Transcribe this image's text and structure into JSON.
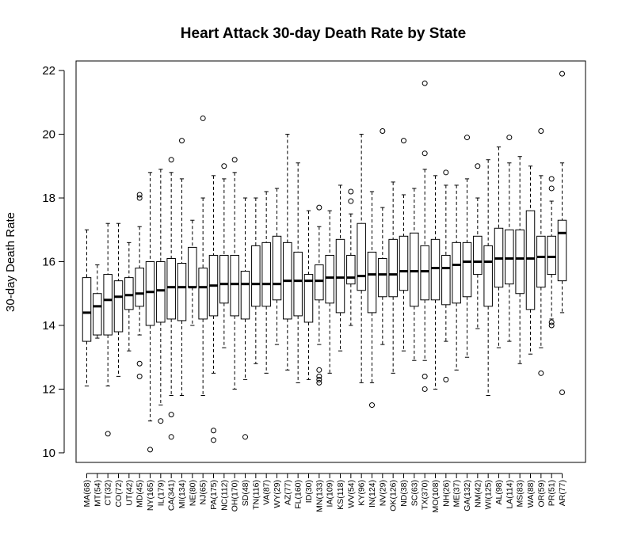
{
  "chart_data": {
    "type": "boxplot",
    "title": "Heart Attack 30-day Death Rate by State",
    "xlabel": "",
    "ylabel": "30-day Death Rate",
    "ylim": [
      9.7,
      22.3
    ],
    "yticks": [
      10,
      12,
      14,
      16,
      18,
      20,
      22
    ],
    "grid": false,
    "categories": [
      "MA(68)",
      "MT(54)",
      "CT(32)",
      "CO(72)",
      "UT(42)",
      "MD(45)",
      "NY(165)",
      "IL(179)",
      "CA(341)",
      "MI(134)",
      "NE(80)",
      "NJ(65)",
      "PA(175)",
      "NC(112)",
      "OH(170)",
      "SD(48)",
      "TN(116)",
      "VA(87)",
      "WY(29)",
      "AZ(77)",
      "FL(160)",
      "ID(30)",
      "MN(133)",
      "IA(109)",
      "KS(118)",
      "WV(54)",
      "KY(96)",
      "IN(124)",
      "NV(29)",
      "OK(126)",
      "ND(38)",
      "SC(63)",
      "TX(370)",
      "MO(108)",
      "NH(26)",
      "ME(37)",
      "GA(132)",
      "NM(42)",
      "WI(125)",
      "AL(98)",
      "LA(114)",
      "MS(83)",
      "WA(88)",
      "OR(59)",
      "PR(51)",
      "AR(77)"
    ],
    "boxes": [
      {
        "min": 12.1,
        "q1": 13.5,
        "median": 14.4,
        "q3": 15.5,
        "max": 17.0,
        "outliers": []
      },
      {
        "min": 13.6,
        "q1": 13.7,
        "median": 14.6,
        "q3": 15.0,
        "max": 15.9,
        "outliers": []
      },
      {
        "min": 12.1,
        "q1": 13.7,
        "median": 14.8,
        "q3": 15.6,
        "max": 17.2,
        "outliers": [
          10.6
        ]
      },
      {
        "min": 12.4,
        "q1": 13.8,
        "median": 14.9,
        "q3": 15.4,
        "max": 17.2,
        "outliers": []
      },
      {
        "min": 13.2,
        "q1": 14.5,
        "median": 14.95,
        "q3": 15.5,
        "max": 16.6,
        "outliers": []
      },
      {
        "min": 13.7,
        "q1": 14.6,
        "median": 15.0,
        "q3": 15.8,
        "max": 17.1,
        "outliers": [
          18.0,
          18.1,
          12.4,
          12.8
        ]
      },
      {
        "min": 11.0,
        "q1": 14.0,
        "median": 15.05,
        "q3": 16.0,
        "max": 18.8,
        "outliers": [
          10.1
        ]
      },
      {
        "min": 11.5,
        "q1": 14.1,
        "median": 15.1,
        "q3": 16.0,
        "max": 18.9,
        "outliers": [
          11.0
        ]
      },
      {
        "min": 11.8,
        "q1": 14.2,
        "median": 15.2,
        "q3": 16.1,
        "max": 18.8,
        "outliers": [
          19.2,
          11.2,
          10.5
        ]
      },
      {
        "min": 11.8,
        "q1": 14.15,
        "median": 15.2,
        "q3": 15.95,
        "max": 18.6,
        "outliers": [
          19.8
        ]
      },
      {
        "min": 14.0,
        "q1": 15.2,
        "median": 15.2,
        "q3": 16.45,
        "max": 17.3,
        "outliers": []
      },
      {
        "min": 11.8,
        "q1": 14.2,
        "median": 15.2,
        "q3": 15.8,
        "max": 18.0,
        "outliers": [
          20.5
        ]
      },
      {
        "min": 12.5,
        "q1": 14.3,
        "median": 15.25,
        "q3": 16.2,
        "max": 18.7,
        "outliers": [
          10.7,
          10.4
        ]
      },
      {
        "min": 13.3,
        "q1": 14.7,
        "median": 15.3,
        "q3": 16.2,
        "max": 18.6,
        "outliers": [
          19.0
        ]
      },
      {
        "min": 12.0,
        "q1": 14.3,
        "median": 15.3,
        "q3": 16.2,
        "max": 18.8,
        "outliers": [
          19.2
        ]
      },
      {
        "min": 12.3,
        "q1": 14.2,
        "median": 15.3,
        "q3": 15.7,
        "max": 18.0,
        "outliers": [
          10.5
        ]
      },
      {
        "min": 12.8,
        "q1": 14.6,
        "median": 15.3,
        "q3": 16.5,
        "max": 18.0,
        "outliers": []
      },
      {
        "min": 12.5,
        "q1": 14.6,
        "median": 15.3,
        "q3": 16.6,
        "max": 18.2,
        "outliers": []
      },
      {
        "min": 13.4,
        "q1": 14.8,
        "median": 15.3,
        "q3": 16.8,
        "max": 18.3,
        "outliers": []
      },
      {
        "min": 12.6,
        "q1": 14.2,
        "median": 15.4,
        "q3": 16.6,
        "max": 20.0,
        "outliers": []
      },
      {
        "min": 12.2,
        "q1": 14.3,
        "median": 15.4,
        "q3": 16.3,
        "max": 19.1,
        "outliers": []
      },
      {
        "min": 12.3,
        "q1": 14.1,
        "median": 15.4,
        "q3": 15.6,
        "max": 17.6,
        "outliers": []
      },
      {
        "min": 13.4,
        "q1": 14.8,
        "median": 15.4,
        "q3": 15.9,
        "max": 17.1,
        "outliers": [
          17.7,
          12.6,
          12.4,
          12.3,
          12.2
        ]
      },
      {
        "min": 12.5,
        "q1": 14.7,
        "median": 15.5,
        "q3": 16.2,
        "max": 17.6,
        "outliers": []
      },
      {
        "min": 13.2,
        "q1": 14.4,
        "median": 15.5,
        "q3": 16.7,
        "max": 18.4,
        "outliers": []
      },
      {
        "min": 14.0,
        "q1": 15.3,
        "median": 15.5,
        "q3": 16.2,
        "max": 17.5,
        "outliers": [
          18.2,
          17.9
        ]
      },
      {
        "min": 12.2,
        "q1": 15.1,
        "median": 15.55,
        "q3": 17.2,
        "max": 20.0,
        "outliers": []
      },
      {
        "min": 12.2,
        "q1": 14.4,
        "median": 15.6,
        "q3": 16.3,
        "max": 18.2,
        "outliers": [
          11.5
        ]
      },
      {
        "min": 13.4,
        "q1": 14.9,
        "median": 15.6,
        "q3": 16.1,
        "max": 17.7,
        "outliers": [
          20.1
        ]
      },
      {
        "min": 12.5,
        "q1": 14.9,
        "median": 15.6,
        "q3": 16.7,
        "max": 18.5,
        "outliers": []
      },
      {
        "min": 13.2,
        "q1": 15.1,
        "median": 15.7,
        "q3": 16.8,
        "max": 18.1,
        "outliers": [
          19.8
        ]
      },
      {
        "min": 12.9,
        "q1": 14.6,
        "median": 15.7,
        "q3": 16.9,
        "max": 18.3,
        "outliers": []
      },
      {
        "min": 12.9,
        "q1": 14.8,
        "median": 15.7,
        "q3": 16.5,
        "max": 18.9,
        "outliers": [
          21.6,
          19.4,
          12.4,
          12.0
        ]
      },
      {
        "min": 12.0,
        "q1": 14.8,
        "median": 15.8,
        "q3": 16.7,
        "max": 18.7,
        "outliers": []
      },
      {
        "min": 13.5,
        "q1": 14.65,
        "median": 15.8,
        "q3": 16.2,
        "max": 18.4,
        "outliers": [
          18.8,
          12.3
        ]
      },
      {
        "min": 12.6,
        "q1": 14.7,
        "median": 15.9,
        "q3": 16.6,
        "max": 18.4,
        "outliers": []
      },
      {
        "min": 13.0,
        "q1": 14.9,
        "median": 16.0,
        "q3": 16.6,
        "max": 18.6,
        "outliers": [
          19.9
        ]
      },
      {
        "min": 13.9,
        "q1": 15.6,
        "median": 16.0,
        "q3": 16.8,
        "max": 18.0,
        "outliers": [
          19.0
        ]
      },
      {
        "min": 11.8,
        "q1": 14.6,
        "median": 16.0,
        "q3": 16.5,
        "max": 19.2,
        "outliers": []
      },
      {
        "min": 13.3,
        "q1": 15.2,
        "median": 16.1,
        "q3": 17.05,
        "max": 19.6,
        "outliers": []
      },
      {
        "min": 13.5,
        "q1": 15.3,
        "median": 16.1,
        "q3": 17.0,
        "max": 19.1,
        "outliers": [
          19.9
        ]
      },
      {
        "min": 12.8,
        "q1": 15.0,
        "median": 16.1,
        "q3": 17.0,
        "max": 19.3,
        "outliers": []
      },
      {
        "min": 13.1,
        "q1": 14.5,
        "median": 16.1,
        "q3": 17.6,
        "max": 19.0,
        "outliers": []
      },
      {
        "min": 13.3,
        "q1": 15.2,
        "median": 16.15,
        "q3": 16.8,
        "max": 18.7,
        "outliers": [
          20.1,
          12.5
        ]
      },
      {
        "min": 14.2,
        "q1": 15.6,
        "median": 16.15,
        "q3": 16.8,
        "max": 17.9,
        "outliers": [
          18.6,
          18.3,
          14.1,
          14.0
        ]
      },
      {
        "min": 14.4,
        "q1": 15.4,
        "median": 16.9,
        "q3": 17.3,
        "max": 19.1,
        "outliers": [
          21.9,
          11.9
        ]
      }
    ]
  }
}
